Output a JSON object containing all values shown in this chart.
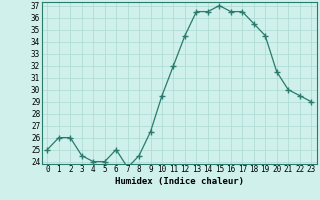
{
  "xlabel": "Humidex (Indice chaleur)",
  "x": [
    0,
    1,
    2,
    3,
    4,
    5,
    6,
    7,
    8,
    9,
    10,
    11,
    12,
    13,
    14,
    15,
    16,
    17,
    18,
    19,
    20,
    21,
    22,
    23
  ],
  "y": [
    25.0,
    26.0,
    26.0,
    24.5,
    24.0,
    24.0,
    25.0,
    23.5,
    24.5,
    26.5,
    29.5,
    32.0,
    34.5,
    36.5,
    36.5,
    37.0,
    36.5,
    36.5,
    35.5,
    34.5,
    31.5,
    30.0,
    29.5,
    29.0
  ],
  "ylim_min": 23.8,
  "ylim_max": 37.3,
  "yticks": [
    24,
    25,
    26,
    27,
    28,
    29,
    30,
    31,
    32,
    33,
    34,
    35,
    36,
    37
  ],
  "line_color": "#2a7a6e",
  "marker": "+",
  "marker_size": 4.0,
  "bg_color": "#cff0eb",
  "grid_color": "#aad8d2",
  "tick_fontsize": 5.5,
  "label_fontsize": 6.5,
  "line_width": 0.9
}
